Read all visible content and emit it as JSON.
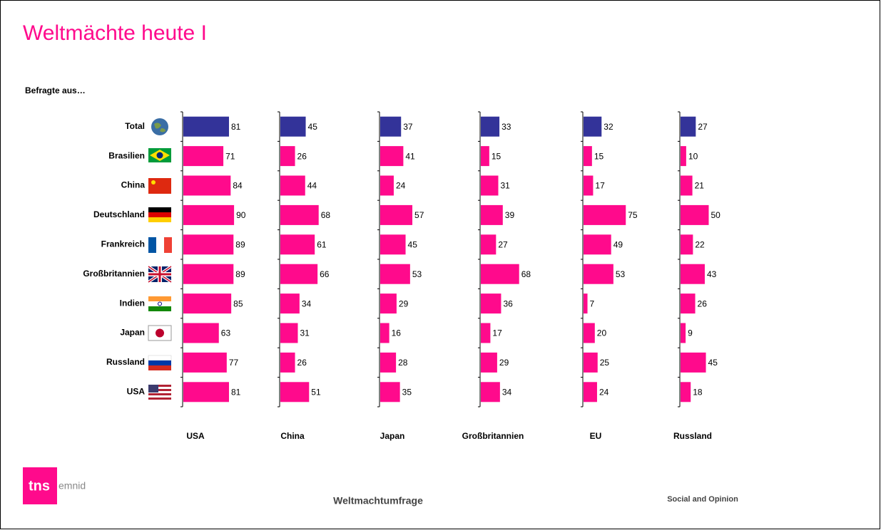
{
  "chart_data": {
    "type": "bar",
    "title": "Weltmächte heute I",
    "subtitle": "Befragte aus…",
    "categories": [
      "Total",
      "Brasilien",
      "China",
      "Deutschland",
      "Frankreich",
      "Großbritannien",
      "Indien",
      "Japan",
      "Russland",
      "USA"
    ],
    "colors": [
      "#333399",
      "#ff0a8c",
      "#ff0a8c",
      "#ff0a8c",
      "#ff0a8c",
      "#ff0a8c",
      "#ff0a8c",
      "#ff0a8c",
      "#ff0a8c",
      "#ff0a8c"
    ],
    "series": [
      {
        "name": "USA",
        "values": [
          81,
          71,
          84,
          90,
          89,
          89,
          85,
          63,
          77,
          81
        ]
      },
      {
        "name": "China",
        "values": [
          45,
          26,
          44,
          68,
          61,
          66,
          34,
          31,
          26,
          51
        ]
      },
      {
        "name": "Japan",
        "values": [
          37,
          41,
          24,
          57,
          45,
          53,
          29,
          16,
          28,
          35
        ]
      },
      {
        "name": "Großbritannien",
        "values": [
          33,
          15,
          31,
          39,
          27,
          68,
          36,
          17,
          29,
          34
        ]
      },
      {
        "name": "EU",
        "values": [
          32,
          15,
          17,
          75,
          49,
          53,
          7,
          20,
          25,
          24
        ]
      },
      {
        "name": "Russland",
        "values": [
          27,
          10,
          21,
          50,
          22,
          43,
          26,
          9,
          45,
          18
        ]
      }
    ]
  },
  "footer": {
    "center": "Weltmachtumfrage",
    "right": "Social and Opinion",
    "logo_mark": "tns",
    "logo_name": "emnid"
  }
}
